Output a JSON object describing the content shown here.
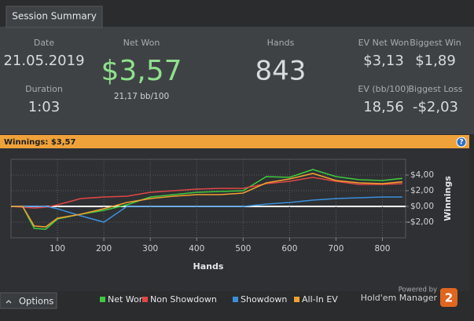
{
  "tab": "Session Summary",
  "stats": [
    {
      "label": "Date",
      "value": "21.05.2019"
    },
    {
      "label": "Duration",
      "value": "1:03"
    },
    {
      "label": "Net Won",
      "value": "$3,57"
    },
    {
      "label": "Hands",
      "value": "843"
    },
    {
      "label": "EV Net Won",
      "value": "$3,13"
    },
    {
      "label": "Biggest Win",
      "value": "$1,89"
    },
    {
      "label": "EV (bb/100)",
      "value": "18,56"
    },
    {
      "label": "Biggest Loss",
      "value": "-$2,03"
    }
  ],
  "net_won_sub": "21,17 bb/100",
  "banner": "Winnings: $3,57",
  "help_icon": "?",
  "footer": {
    "options": "Options",
    "powered_by": "Powered by",
    "brand": "Hold'em Manager",
    "brand_badge": "2"
  },
  "chart_data": {
    "type": "line",
    "x_label": "Hands",
    "y_label": "Winnings",
    "x": [
      0,
      25,
      50,
      75,
      100,
      150,
      200,
      250,
      300,
      350,
      400,
      450,
      500,
      550,
      600,
      650,
      700,
      750,
      800,
      843
    ],
    "series": [
      {
        "name": "Net Won",
        "color": "#3ec93e",
        "values": [
          0,
          0,
          -2.8,
          -2.9,
          -1.6,
          -1,
          -0.5,
          0.2,
          1.2,
          1.5,
          1.8,
          1.9,
          2,
          3.8,
          3.7,
          4.7,
          3.8,
          3.4,
          3.3,
          3.57
        ]
      },
      {
        "name": "Non Showdown",
        "color": "#e04646",
        "values": [
          0,
          -0.1,
          -0.2,
          -0.1,
          0.2,
          1,
          1.2,
          1.3,
          1.8,
          2,
          2.2,
          2.3,
          2.3,
          2.9,
          3.2,
          3.7,
          3.2,
          2.8,
          2.8,
          2.9
        ]
      },
      {
        "name": "Showdown",
        "color": "#3b8fd9",
        "values": [
          0,
          0,
          0,
          0,
          -0.3,
          -1.2,
          -2,
          0,
          0,
          0,
          0,
          0,
          0,
          0.3,
          0.5,
          0.8,
          1,
          1.1,
          1.2,
          1.2
        ]
      },
      {
        "name": "All-In EV",
        "color": "#f0a030",
        "values": [
          0,
          0,
          -2.5,
          -2.6,
          -1.5,
          -1,
          -0.3,
          0.5,
          1,
          1.3,
          1.5,
          1.5,
          1.7,
          3,
          3.5,
          4.2,
          3.3,
          3,
          2.9,
          3.13
        ]
      }
    ],
    "xlim": [
      0,
      850
    ],
    "xticks": [
      100,
      200,
      300,
      400,
      500,
      600,
      700,
      800
    ],
    "ylim": [
      -4,
      6
    ],
    "yticks": [
      {
        "value": -2,
        "label": "-$2,00"
      },
      {
        "value": 0,
        "label": "$0,00"
      },
      {
        "value": 2,
        "label": "$2,00"
      },
      {
        "value": 4,
        "label": "$4,00"
      }
    ],
    "grid": true
  }
}
